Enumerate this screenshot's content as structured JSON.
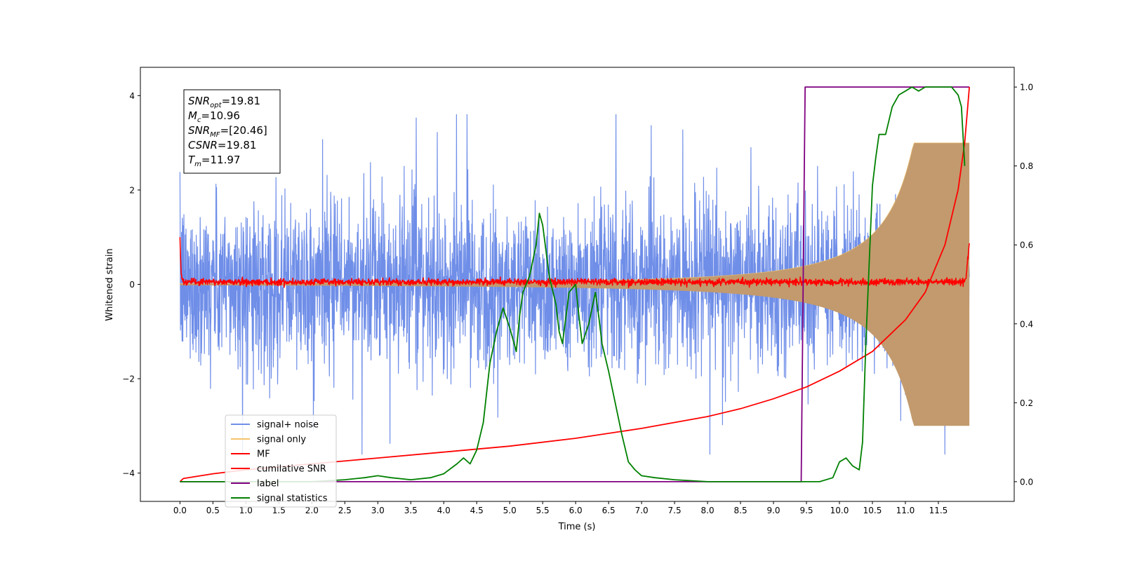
{
  "chart_data": {
    "type": "line",
    "xlabel": "Time (s)",
    "ylabel": "Whitened strain",
    "xlim": [
      -0.6,
      12.65
    ],
    "ylim": [
      -4.6,
      4.6
    ],
    "ylim_right": [
      -0.05,
      1.05
    ],
    "x_ticks": [
      0.0,
      0.5,
      1.0,
      1.5,
      2.0,
      2.5,
      3.0,
      3.5,
      4.0,
      4.5,
      5.0,
      5.5,
      6.0,
      6.5,
      7.0,
      7.5,
      8.0,
      8.5,
      9.0,
      9.5,
      10.0,
      10.5,
      11.0,
      11.5
    ],
    "x_tick_labels": [
      "0.0",
      "0.5",
      "1.0",
      "1.5",
      "2.0",
      "2.5",
      "3.0",
      "3.5",
      "4.0",
      "4.5",
      "5.0",
      "5.5",
      "6.0",
      "6.5",
      "7.0",
      "7.5",
      "8.0",
      "8.5",
      "9.0",
      "9.5",
      "10.0",
      "10.5",
      "11.0",
      "11.5"
    ],
    "y_ticks": [
      -4,
      -2,
      0,
      2,
      4
    ],
    "y_tick_labels": [
      "−4",
      "−2",
      "0",
      "2",
      "4"
    ],
    "y_right_ticks": [
      0.0,
      0.2,
      0.4,
      0.6,
      0.8,
      1.0
    ],
    "y_right_tick_labels": [
      "0.0",
      "0.2",
      "0.4",
      "0.6",
      "0.8",
      "1.0"
    ],
    "grid": false,
    "legend_location": "lower-left",
    "annotation": {
      "lines": [
        {
          "name": "SNR",
          "sub": "opt",
          "value": "=19.81"
        },
        {
          "name": "M",
          "sub": "c",
          "value": "=10.96"
        },
        {
          "name": "SNR",
          "sub": "MF",
          "value": "=[20.46]"
        },
        {
          "name": "CSNR",
          "sub": "",
          "value": "=19.81"
        },
        {
          "name": "T",
          "sub": "m",
          "value": "=11.97"
        }
      ]
    },
    "series": [
      {
        "name": "signal+ noise",
        "color": "#6f8ee8",
        "axis": "left",
        "kind": "noise",
        "x_range": [
          0.0,
          11.97
        ],
        "typical_amplitude": 1.1,
        "peak_amplitude": 3.6
      },
      {
        "name": "signal only",
        "color": "#f5c46b",
        "axis": "left",
        "kind": "chirp",
        "x_range": [
          0.0,
          11.97
        ],
        "amplitude_start": 0.02,
        "amplitude_end": 3.0
      },
      {
        "name": "MF",
        "color": "#ff0000",
        "axis": "left",
        "kind": "mf",
        "x_range": [
          0.0,
          11.97
        ],
        "x": [
          0.0,
          0.02,
          0.05,
          11.9,
          11.93,
          11.97
        ],
        "y": [
          1.0,
          0.2,
          0.05,
          0.05,
          0.3,
          0.87
        ]
      },
      {
        "name": "cumilative SNR",
        "color": "#ff0000",
        "axis": "right",
        "x": [
          0.0,
          0.05,
          0.5,
          1.0,
          2.0,
          3.0,
          4.0,
          5.0,
          6.0,
          7.0,
          8.0,
          8.5,
          9.0,
          9.5,
          10.0,
          10.5,
          11.0,
          11.3,
          11.6,
          11.8,
          11.9,
          11.97
        ],
        "y": [
          0.0,
          0.008,
          0.02,
          0.03,
          0.045,
          0.06,
          0.075,
          0.09,
          0.11,
          0.135,
          0.165,
          0.185,
          0.21,
          0.24,
          0.28,
          0.33,
          0.41,
          0.48,
          0.6,
          0.74,
          0.86,
          1.0
        ]
      },
      {
        "name": "label",
        "color": "#800080",
        "axis": "right",
        "x": [
          0.0,
          9.42,
          9.48,
          11.97
        ],
        "y": [
          0.0,
          0.0,
          1.0,
          1.0
        ]
      },
      {
        "name": "signal statistics",
        "color": "#008000",
        "axis": "right",
        "x": [
          0.0,
          0.5,
          1.0,
          1.5,
          2.0,
          2.5,
          2.8,
          3.0,
          3.2,
          3.5,
          3.8,
          4.0,
          4.2,
          4.3,
          4.4,
          4.5,
          4.6,
          4.7,
          4.8,
          4.9,
          5.0,
          5.1,
          5.15,
          5.2,
          5.3,
          5.4,
          5.45,
          5.5,
          5.6,
          5.7,
          5.75,
          5.8,
          5.9,
          6.0,
          6.05,
          6.1,
          6.2,
          6.3,
          6.35,
          6.4,
          6.5,
          6.6,
          6.7,
          6.8,
          6.9,
          7.0,
          7.2,
          7.5,
          8.0,
          8.5,
          9.0,
          9.5,
          9.7,
          9.9,
          10.0,
          10.1,
          10.2,
          10.3,
          10.35,
          10.4,
          10.45,
          10.5,
          10.55,
          10.6,
          10.7,
          10.8,
          10.9,
          11.0,
          11.1,
          11.2,
          11.3,
          11.5,
          11.7,
          11.8,
          11.85,
          11.9
        ],
        "y": [
          0.0,
          0.0,
          0.0,
          0.0,
          0.0,
          0.005,
          0.01,
          0.015,
          0.01,
          0.005,
          0.01,
          0.02,
          0.045,
          0.06,
          0.045,
          0.08,
          0.15,
          0.3,
          0.38,
          0.44,
          0.39,
          0.33,
          0.42,
          0.48,
          0.52,
          0.6,
          0.68,
          0.65,
          0.52,
          0.45,
          0.38,
          0.35,
          0.48,
          0.5,
          0.42,
          0.35,
          0.4,
          0.48,
          0.42,
          0.35,
          0.28,
          0.2,
          0.12,
          0.05,
          0.03,
          0.015,
          0.01,
          0.005,
          0.0,
          0.0,
          0.0,
          0.0,
          0.0,
          0.01,
          0.05,
          0.06,
          0.04,
          0.03,
          0.1,
          0.35,
          0.55,
          0.75,
          0.82,
          0.88,
          0.88,
          0.95,
          0.98,
          0.99,
          1.0,
          0.99,
          1.0,
          1.0,
          1.0,
          0.98,
          0.95,
          0.8
        ]
      }
    ]
  }
}
